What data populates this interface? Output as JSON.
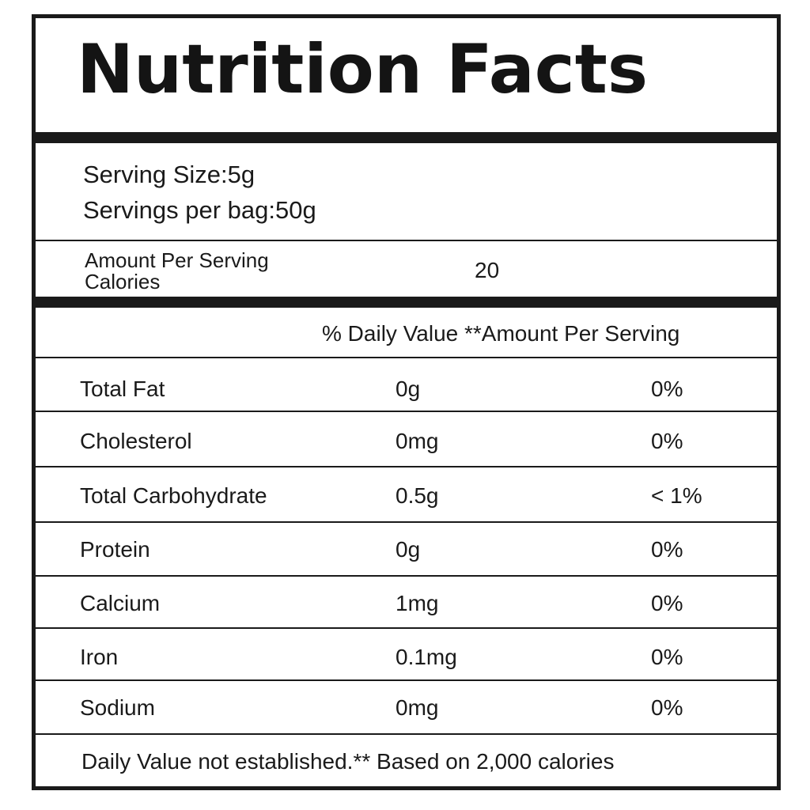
{
  "title": "Nutrition Facts",
  "serving": {
    "size_line": "Serving Size:5g",
    "per_bag_line": "Servings per bag:50g"
  },
  "amount_per_serving_label": "Amount Per Serving",
  "calories": {
    "label": "Calories",
    "value": "20"
  },
  "table_header": "% Daily Value **Amount Per Serving",
  "nutrients": [
    {
      "name": "Total Fat",
      "amount": "0g",
      "daily_value": "0%"
    },
    {
      "name": "Cholesterol",
      "amount": "0mg",
      "daily_value": "0%"
    },
    {
      "name": "Total Carbohydrate",
      "amount": "0.5g",
      "daily_value": "< 1%"
    },
    {
      "name": "Protein",
      "amount": "0g",
      "daily_value": "0%"
    },
    {
      "name": "Calcium",
      "amount": "1mg",
      "daily_value": "0%"
    },
    {
      "name": "Iron",
      "amount": "0.1mg",
      "daily_value": "0%"
    },
    {
      "name": "Sodium",
      "amount": "0mg",
      "daily_value": "0%"
    }
  ],
  "footer_note": "Daily Value not established.** Based on 2,000 calories"
}
